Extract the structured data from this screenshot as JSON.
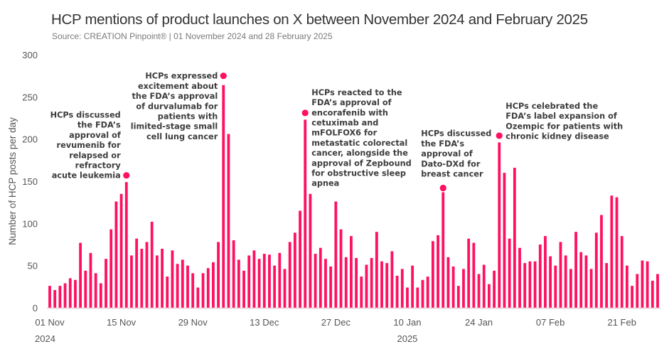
{
  "chart_data": {
    "type": "bar",
    "title": "HCP mentions of product launches on X between November 2024 and February 2025",
    "subtitle": "Source: CREATION Pinpoint® | 01 November 2024 and 28 February 2025",
    "xlabel": "",
    "ylabel": "Number of HCP posts per day",
    "ylim": [
      0,
      300
    ],
    "yticks": [
      0,
      50,
      100,
      150,
      200,
      250,
      300
    ],
    "grid": false,
    "bar_color": "#ff1060",
    "start_date": "2024-11-01",
    "end_date": "2025-02-28",
    "xticks": [
      {
        "day_index": 0,
        "label": "01 Nov",
        "year": "2024"
      },
      {
        "day_index": 14,
        "label": "15 Nov"
      },
      {
        "day_index": 28,
        "label": "29 Nov"
      },
      {
        "day_index": 42,
        "label": "13 Dec"
      },
      {
        "day_index": 56,
        "label": "27 Dec"
      },
      {
        "day_index": 70,
        "label": "10 Jan",
        "year": "2025"
      },
      {
        "day_index": 84,
        "label": "24 Jan"
      },
      {
        "day_index": 98,
        "label": "07 Feb"
      },
      {
        "day_index": 112,
        "label": "21 Feb"
      }
    ],
    "values": [
      26,
      21,
      26,
      29,
      35,
      33,
      77,
      44,
      65,
      41,
      29,
      58,
      93,
      126,
      135,
      149,
      62,
      82,
      70,
      78,
      102,
      62,
      70,
      37,
      68,
      52,
      57,
      50,
      41,
      24,
      41,
      47,
      54,
      78,
      264,
      206,
      80,
      57,
      44,
      62,
      68,
      58,
      64,
      63,
      50,
      65,
      46,
      78,
      89,
      115,
      223,
      135,
      64,
      71,
      58,
      49,
      126,
      93,
      60,
      85,
      59,
      37,
      51,
      59,
      90,
      55,
      53,
      67,
      38,
      46,
      24,
      50,
      24,
      33,
      37,
      79,
      86,
      137,
      60,
      49,
      26,
      46,
      82,
      77,
      40,
      51,
      28,
      44,
      196,
      160,
      82,
      166,
      71,
      53,
      55,
      55,
      75,
      85,
      61,
      50,
      78,
      62,
      46,
      90,
      66,
      62,
      46,
      89,
      110,
      53,
      133,
      131,
      85,
      50,
      26,
      40,
      56,
      55,
      32,
      40
    ],
    "annotations": [
      {
        "day_index": 15,
        "marker_value": 157,
        "align": "right",
        "lines": [
          "HCPs discussed",
          "the FDA’s",
          "approval of",
          "revumenib for",
          "relapsed or",
          "refractory",
          "acute leukemia"
        ]
      },
      {
        "day_index": 34,
        "marker_value": 275,
        "align": "right",
        "lines": [
          "HCPs expressed",
          "excitement about",
          "the FDA’s approval",
          "of durvalumab for",
          "patients with",
          "limited-stage small",
          "cell lung cancer"
        ]
      },
      {
        "day_index": 50,
        "marker_value": 231,
        "align": "left",
        "lines": [
          "HCPs reacted to the",
          "FDA’s approval of",
          "encorafenib with",
          "cetuximab and",
          "mFOLFOX6 for",
          "metastatic colorectal",
          "cancer, alongside the",
          "approval of Zepbound",
          "for obstructive sleep",
          "apnea"
        ]
      },
      {
        "day_index": 77,
        "marker_value": 142,
        "align": "above",
        "lines": [
          "HCPs discussed",
          "the FDA’s",
          "approval of",
          "Dato-DXd for",
          "breast cancer"
        ]
      },
      {
        "day_index": 88,
        "marker_value": 204,
        "align": "left",
        "lines": [
          "HCPs celebrated the",
          "FDA’s label expansion of",
          "Ozempic for patients with",
          "chronic kidney disease"
        ]
      }
    ]
  }
}
